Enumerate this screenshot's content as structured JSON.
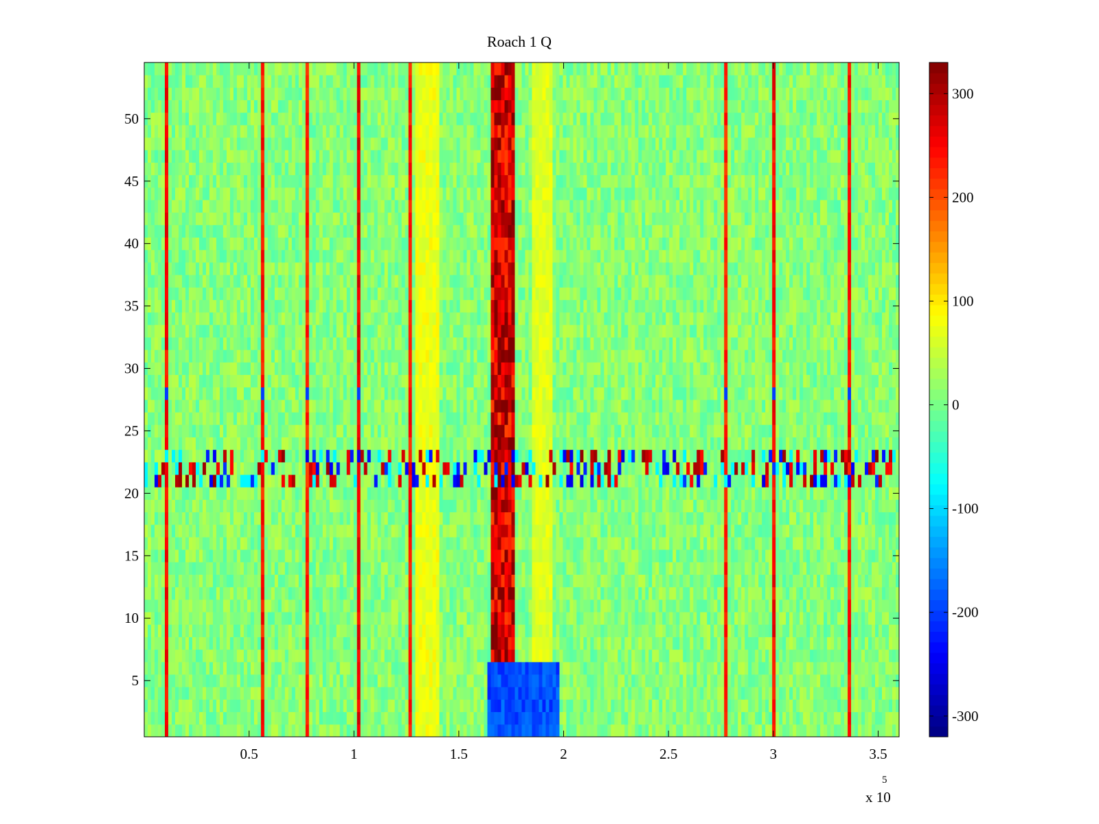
{
  "chart_data": {
    "type": "heatmap",
    "title": "Roach 1 Q",
    "xlabel": "",
    "ylabel": "",
    "x_exponent_label": "x 10",
    "x_exponent": "5",
    "xlim": [
      0,
      3.6
    ],
    "ylim": [
      0.5,
      54.5
    ],
    "x_ticks": [
      "0.5",
      "1",
      "1.5",
      "2",
      "2.5",
      "3",
      "3.5"
    ],
    "x_tick_values": [
      0.5,
      1,
      1.5,
      2,
      2.5,
      3,
      3.5
    ],
    "y_ticks": [
      "5",
      "10",
      "15",
      "20",
      "25",
      "30",
      "35",
      "40",
      "45",
      "50"
    ],
    "y_tick_values": [
      5,
      10,
      15,
      20,
      25,
      30,
      35,
      40,
      45,
      50
    ],
    "rows": 54,
    "colormap": "jet",
    "colorbar": {
      "range": [
        -320,
        330
      ],
      "ticks": [
        "-300",
        "-200",
        "-100",
        "0",
        "100",
        "200",
        "300"
      ],
      "tick_values": [
        -300,
        -200,
        -100,
        0,
        100,
        200,
        300
      ]
    },
    "baseline_value": 10,
    "column_features": [
      {
        "x": 0.1,
        "value": 260,
        "note": "narrow vertical stripe"
      },
      {
        "x": 0.56,
        "value": 250,
        "note": "narrow vertical stripe"
      },
      {
        "x": 0.78,
        "value": 240,
        "note": "narrow vertical stripe"
      },
      {
        "x": 1.02,
        "value": 270,
        "note": "narrow vertical stripe"
      },
      {
        "x": 1.27,
        "value": 250,
        "note": "narrow vertical stripe"
      },
      {
        "x_range": [
          1.66,
          1.76
        ],
        "value": 290,
        "note": "dominant vertical band"
      },
      {
        "x_range": [
          1.3,
          1.4
        ],
        "value": 80,
        "note": "yellow band"
      },
      {
        "x_range": [
          1.86,
          1.94
        ],
        "value": 70,
        "note": "yellow band"
      },
      {
        "x": 2.78,
        "value": 240,
        "note": "narrow vertical stripe"
      },
      {
        "x": 3.01,
        "value": 260,
        "note": "narrow vertical stripe"
      },
      {
        "x": 3.36,
        "value": 250,
        "note": "narrow vertical stripe"
      }
    ],
    "row_features": [
      {
        "y_range": [
          21,
          23
        ],
        "note": "horizontal band of alternating high and low values"
      },
      {
        "y_range": [
          0.5,
          6
        ],
        "x_range": [
          1.65,
          1.97
        ],
        "value": -200,
        "note": "blue block"
      },
      {
        "y": 28,
        "value": -200,
        "note": "blue cells on stripes"
      }
    ]
  }
}
